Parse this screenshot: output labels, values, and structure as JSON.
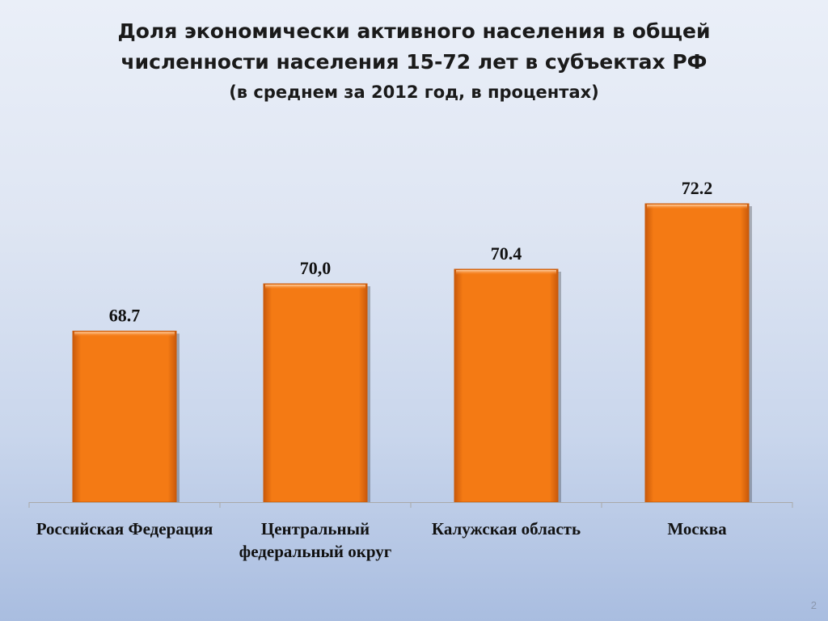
{
  "slide": {
    "title_line1": "Доля экономически активного населения в общей",
    "title_line2": "численности населения 15-72 лет в субъектах РФ",
    "subtitle": "(в среднем за 2012 год, в процентах)",
    "slide_number": "2"
  },
  "colors": {
    "bar": "#f47a14",
    "bar_dark": "#c9590a",
    "axis": "#a9a9a9"
  },
  "chart_data": {
    "type": "bar",
    "title": "Доля экономически активного населения в общей численности населения 15-72 лет в субъектах РФ",
    "subtitle": "(в среднем за 2012 год, в процентах)",
    "categories": [
      "Российская Федерация",
      "Центральный федеральный округ",
      "Калужская область",
      "Москва"
    ],
    "values": [
      68.7,
      70.0,
      70.4,
      72.2
    ],
    "data_labels": [
      "68.7",
      "70,0",
      "70.4",
      "72.2"
    ],
    "xlabel": "",
    "ylabel": "",
    "ylim": [
      64,
      73
    ],
    "grid": false,
    "legend": "none"
  }
}
